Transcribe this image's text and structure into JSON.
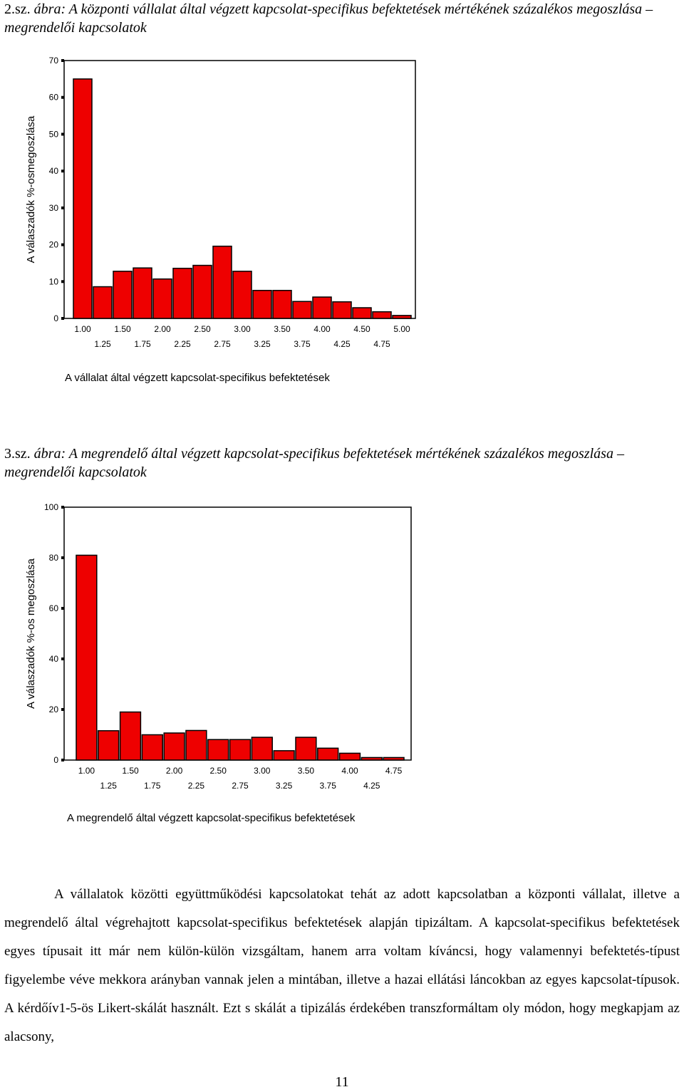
{
  "figure1": {
    "caption_number": "2.sz.",
    "caption_text": " ábra: A központi vállalat által végzett kapcsolat-specifikus befektetések mértékének százalékos megoszlása – megrendelői kapcsolatok"
  },
  "figure2": {
    "caption_number": "3.sz.",
    "caption_text": " ábra: A megrendelő által végzett kapcsolat-specifikus befektetések mértékének százalékos megoszlása – megrendelői kapcsolatok"
  },
  "chart_data": [
    {
      "type": "bar",
      "categories": [
        "1.00",
        "1.25",
        "1.50",
        "1.75",
        "2.00",
        "2.25",
        "2.50",
        "2.75",
        "3.00",
        "3.25",
        "3.50",
        "3.75",
        "4.00",
        "4.25",
        "4.50",
        "4.75",
        "5.00"
      ],
      "values": [
        65,
        8.6,
        12.8,
        13.7,
        10.7,
        13.6,
        14.4,
        19.6,
        12.8,
        7.6,
        7.6,
        4.6,
        5.8,
        4.5,
        2.9,
        1.8,
        0.8
      ],
      "xlabel": "A vállalat által végzett kapcsolat-specifikus befektetések",
      "ylabel": "A válaszadók %-osmegoszlása",
      "yticks": [
        0,
        10,
        20,
        30,
        40,
        50,
        60,
        70
      ],
      "ylim": [
        0,
        70
      ],
      "xticks_row1": [
        "1.00",
        "1.50",
        "2.00",
        "2.50",
        "3.00",
        "3.50",
        "4.00",
        "4.50",
        "5.00"
      ],
      "xticks_row2": [
        "1.25",
        "1.75",
        "2.25",
        "2.75",
        "3.25",
        "3.75",
        "4.25",
        "4.75"
      ],
      "grid": false,
      "color": "#ee0000"
    },
    {
      "type": "bar",
      "categories": [
        "1.00",
        "1.25",
        "1.50",
        "1.75",
        "2.00",
        "2.25",
        "2.50",
        "2.75",
        "3.00",
        "3.25",
        "3.50",
        "3.75",
        "4.00",
        "4.25",
        "4.75"
      ],
      "values": [
        81,
        11.6,
        19,
        10,
        10.7,
        11.7,
        8.1,
        8.1,
        9,
        3.7,
        9,
        4.7,
        2.7,
        1,
        1
      ],
      "xlabel": "A megrendelő által végzett kapcsolat-specifikus befektetések",
      "ylabel": "A válaszadók %-os megoszlása",
      "yticks": [
        0,
        20,
        40,
        60,
        80,
        100
      ],
      "ylim": [
        0,
        100
      ],
      "xticks_row1": [
        "1.00",
        "1.50",
        "2.00",
        "2.50",
        "3.00",
        "3.50",
        "4.00",
        "4.75"
      ],
      "xticks_row2": [
        "1.25",
        "1.75",
        "2.25",
        "2.75",
        "3.25",
        "3.75",
        "4.25"
      ],
      "grid": false,
      "color": "#ee0000"
    }
  ],
  "body": {
    "paragraph": "A vállalatok közötti együttműködési kapcsolatokat tehát az adott kapcsolatban a központi vállalat, illetve a megrendelő által végrehajtott kapcsolat-specifikus befektetések alapján tipizáltam. A kapcsolat-specifikus befektetések egyes típusait itt már nem külön-külön vizsgáltam, hanem arra voltam kíváncsi, hogy valamennyi befektetés-típust figyelembe véve mekkora arányban vannak jelen a mintában, illetve a hazai ellátási láncokban az egyes kapcsolat-típusok. A kérdőív1-5-ös Likert-skálát használt. Ezt s skálát a tipizálás érdekében transzformáltam oly módon, hogy megkapjam az alacsony,"
  },
  "page_number": "11"
}
